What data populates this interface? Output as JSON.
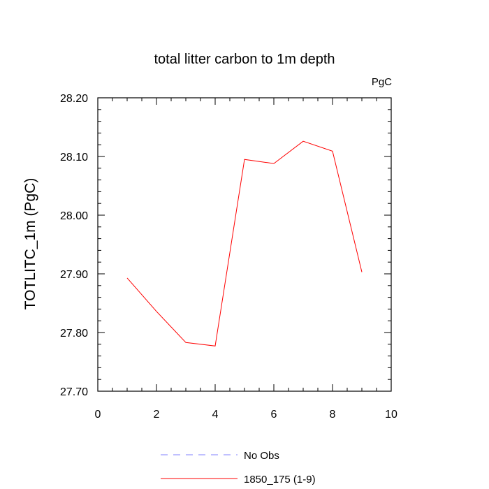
{
  "chart_data": {
    "type": "line",
    "title": "total litter carbon to 1m depth",
    "units_label": "PgC",
    "xlabel": "",
    "ylabel": "TOTLITC_1m  (PgC)",
    "xlim": [
      0,
      10
    ],
    "ylim": [
      27.7,
      28.2
    ],
    "x_ticks": [
      0,
      2,
      4,
      6,
      8,
      10
    ],
    "x_tick_labels": [
      "0",
      "2",
      "4",
      "6",
      "8",
      "10"
    ],
    "y_ticks": [
      27.7,
      27.8,
      27.9,
      28.0,
      28.1,
      28.2
    ],
    "y_tick_labels": [
      "27.70",
      "27.80",
      "27.90",
      "28.00",
      "28.10",
      "28.20"
    ],
    "grid": false,
    "legend_position": "bottom",
    "series": [
      {
        "name": "1850_175 (1-9)",
        "color": "#ff0000",
        "dash": "solid",
        "x": [
          1,
          2,
          3,
          4,
          5,
          6,
          7,
          8,
          9
        ],
        "y": [
          27.893,
          27.836,
          27.783,
          27.777,
          28.095,
          28.088,
          28.126,
          28.109,
          27.903
        ]
      }
    ],
    "legend": [
      {
        "label": "No Obs",
        "color": "#8080ff",
        "dash": "dashed"
      },
      {
        "label": "1850_175 (1-9)",
        "color": "#ff0000",
        "dash": "solid"
      }
    ]
  }
}
